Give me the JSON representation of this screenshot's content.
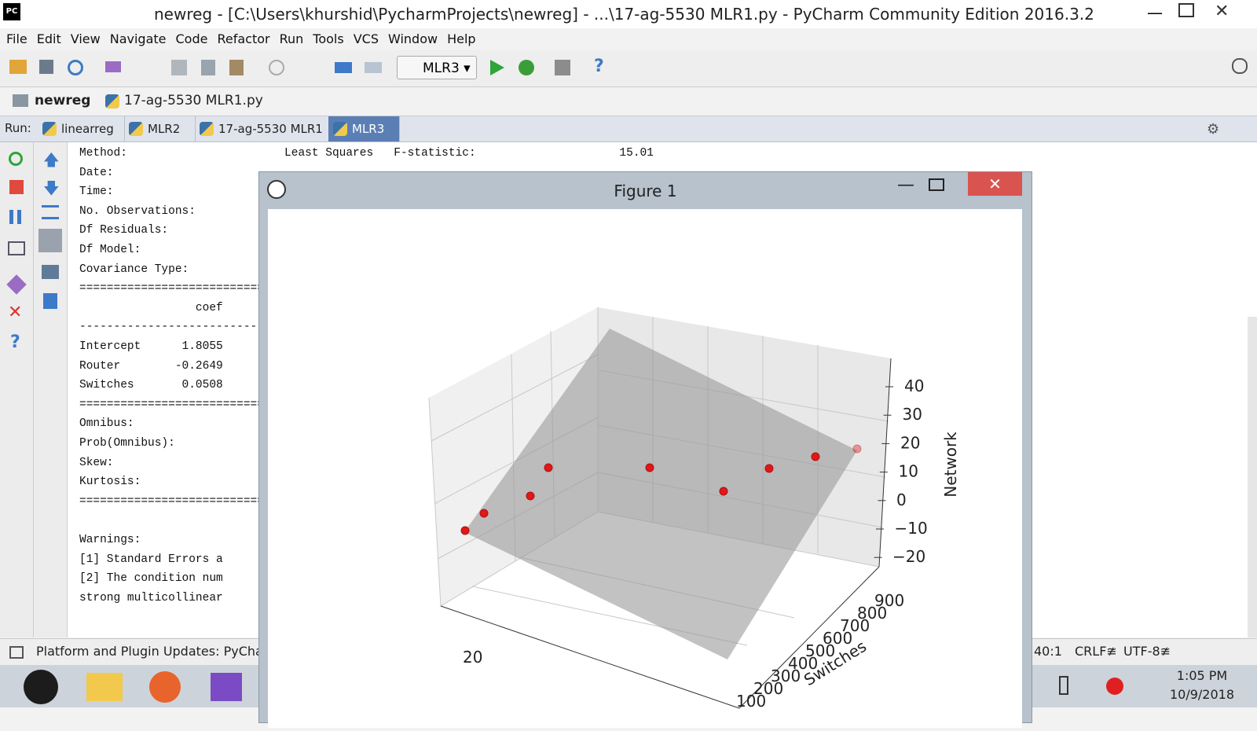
{
  "window": {
    "title": "newreg - [C:\\Users\\khurshid\\PycharmProjects\\newreg] - ...\\17-ag-5530 MLR1.py - PyCharm Community Edition 2016.3.2"
  },
  "menu": [
    "File",
    "Edit",
    "View",
    "Navigate",
    "Code",
    "Refactor",
    "Run",
    "Tools",
    "VCS",
    "Window",
    "Help"
  ],
  "toolbar": {
    "run_config": "MLR3"
  },
  "breadcrumb": [
    "newreg",
    "17-ag-5530 MLR1.py"
  ],
  "run": {
    "label": "Run:",
    "tabs": [
      "linearreg",
      "MLR2",
      "17-ag-5530 MLR1",
      "MLR3"
    ]
  },
  "console": {
    "lines": [
      "Method:                       Least Squares   F-statistic:                     15.01",
      "Date:",
      "Time:",
      "No. Observations:",
      "Df Residuals:",
      "Df Model:",
      "Covariance Type:",
      "========================================",
      "                 coef",
      "----------------------------------------",
      "Intercept      1.8055",
      "Router        -0.2649",
      "Switches       0.0508",
      "========================================",
      "Omnibus:",
      "Prob(Omnibus):",
      "Skew:",
      "Kurtosis:",
      "========================================"
    ],
    "warnings": [
      "Warnings:",
      "[1] Standard Errors a",
      "[2] The condition num",
      "strong multicollinear"
    ]
  },
  "figure": {
    "title": "Figure 1",
    "z_label": "Network",
    "z_ticks": [
      "40",
      "30",
      "20",
      "10",
      "0",
      "−10",
      "−20"
    ],
    "y_label": "Switches",
    "y_ticks": [
      "900",
      "800",
      "700",
      "600",
      "500",
      "400",
      "300",
      "200",
      "100"
    ],
    "x_ticks": [
      "20"
    ]
  },
  "status": {
    "message": "Platform and Plugin Updates: PyCha",
    "position": "40:1",
    "line_separator": "CRLF≇",
    "encoding": "UTF-8≇"
  },
  "taskbar": {
    "time": "1:05 PM",
    "date": "10/9/2018"
  }
}
